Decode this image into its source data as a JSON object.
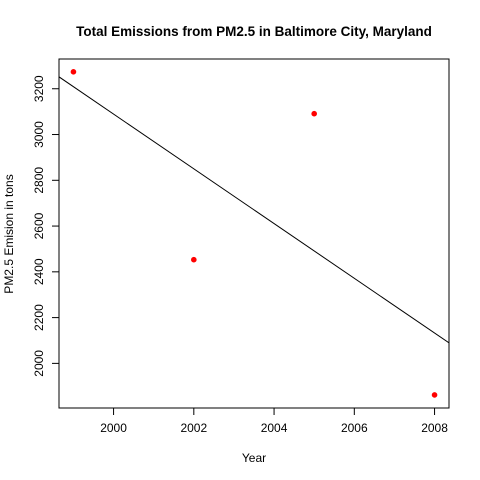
{
  "chart_data": {
    "type": "scatter",
    "title": "Total Emissions from PM2.5 in Baltimore City, Maryland",
    "xlabel": "Year",
    "ylabel": "PM2.5 Emision in tons",
    "xlim": [
      1998.64,
      2008.36
    ],
    "ylim": [
      1805,
      3330
    ],
    "x_ticks": [
      2000,
      2002,
      2004,
      2006,
      2008
    ],
    "y_ticks": [
      2000,
      2200,
      2400,
      2600,
      2800,
      3000,
      3200
    ],
    "grid": false,
    "legend": "none",
    "point_color": "#ff0000",
    "line_color": "#000000",
    "series": [
      {
        "x": [
          1999,
          2002,
          2005,
          2008
        ],
        "y": [
          3274,
          2453,
          3091,
          1862
        ]
      }
    ],
    "trend_line": {
      "intercept_at_1998_64": 3252,
      "slope": -119.6
    }
  }
}
